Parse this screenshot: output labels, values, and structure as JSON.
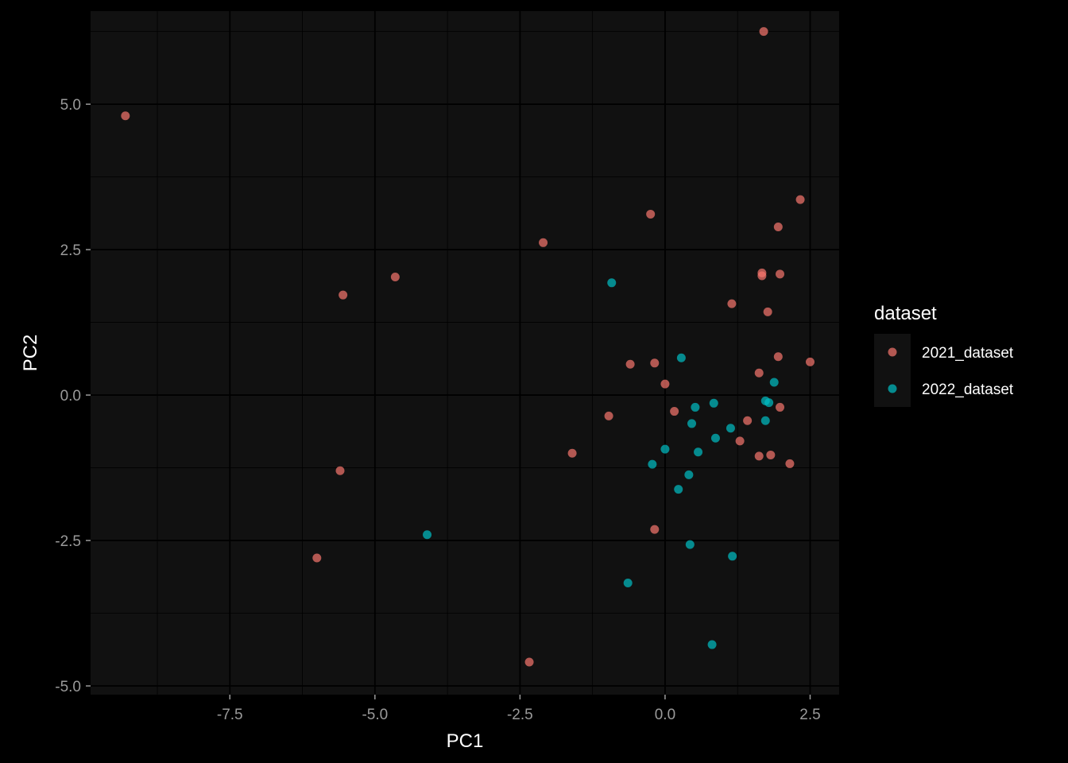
{
  "chart_data": {
    "type": "scatter",
    "title": "",
    "xlabel": "PC1",
    "ylabel": "PC2",
    "xlim": [
      -9.9,
      3.0
    ],
    "ylim": [
      -5.15,
      6.6
    ],
    "x_ticks": [
      -7.5,
      -5.0,
      -2.5,
      0.0,
      2.5
    ],
    "x_tick_labels": [
      "-7.5",
      "-5.0",
      "-2.5",
      "0.0",
      "2.5"
    ],
    "y_ticks": [
      -5.0,
      -2.5,
      0.0,
      2.5,
      5.0
    ],
    "y_tick_labels": [
      "-5.0",
      "-2.5",
      "0.0",
      "2.5",
      "5.0"
    ],
    "grid": true,
    "legend": {
      "title": "dataset",
      "position": "right"
    },
    "series": [
      {
        "name": "2021_dataset",
        "color": "#F8766D",
        "points": [
          [
            -9.3,
            4.8
          ],
          [
            1.7,
            6.25
          ],
          [
            -5.55,
            1.72
          ],
          [
            -4.65,
            2.03
          ],
          [
            -2.1,
            2.62
          ],
          [
            -0.25,
            3.11
          ],
          [
            2.33,
            3.36
          ],
          [
            1.95,
            2.89
          ],
          [
            1.67,
            2.1
          ],
          [
            1.67,
            2.05
          ],
          [
            1.98,
            2.08
          ],
          [
            1.15,
            1.57
          ],
          [
            1.77,
            1.43
          ],
          [
            1.95,
            0.66
          ],
          [
            2.5,
            0.57
          ],
          [
            -0.6,
            0.53
          ],
          [
            -0.18,
            0.55
          ],
          [
            0.0,
            0.19
          ],
          [
            1.62,
            0.38
          ],
          [
            -0.97,
            -0.36
          ],
          [
            0.16,
            -0.28
          ],
          [
            1.98,
            -0.21
          ],
          [
            1.42,
            -0.44
          ],
          [
            1.29,
            -0.79
          ],
          [
            -1.6,
            -1.0
          ],
          [
            1.62,
            -1.05
          ],
          [
            1.82,
            -1.03
          ],
          [
            2.15,
            -1.18
          ],
          [
            -5.6,
            -1.3
          ],
          [
            -0.18,
            -2.31
          ],
          [
            -6.0,
            -2.8
          ],
          [
            -2.34,
            -4.59
          ]
        ]
      },
      {
        "name": "2022_dataset",
        "color": "#00BFC4",
        "points": [
          [
            -0.92,
            1.93
          ],
          [
            0.28,
            0.64
          ],
          [
            1.88,
            0.22
          ],
          [
            1.73,
            -0.1
          ],
          [
            1.79,
            -0.13
          ],
          [
            0.84,
            -0.14
          ],
          [
            0.52,
            -0.21
          ],
          [
            0.46,
            -0.49
          ],
          [
            1.73,
            -0.44
          ],
          [
            1.13,
            -0.57
          ],
          [
            0.87,
            -0.74
          ],
          [
            0.0,
            -0.93
          ],
          [
            0.57,
            -0.98
          ],
          [
            -0.22,
            -1.19
          ],
          [
            0.41,
            -1.37
          ],
          [
            0.23,
            -1.62
          ],
          [
            -4.1,
            -2.4
          ],
          [
            0.43,
            -2.57
          ],
          [
            1.16,
            -2.77
          ],
          [
            -0.64,
            -3.23
          ],
          [
            0.81,
            -4.29
          ]
        ]
      }
    ]
  }
}
